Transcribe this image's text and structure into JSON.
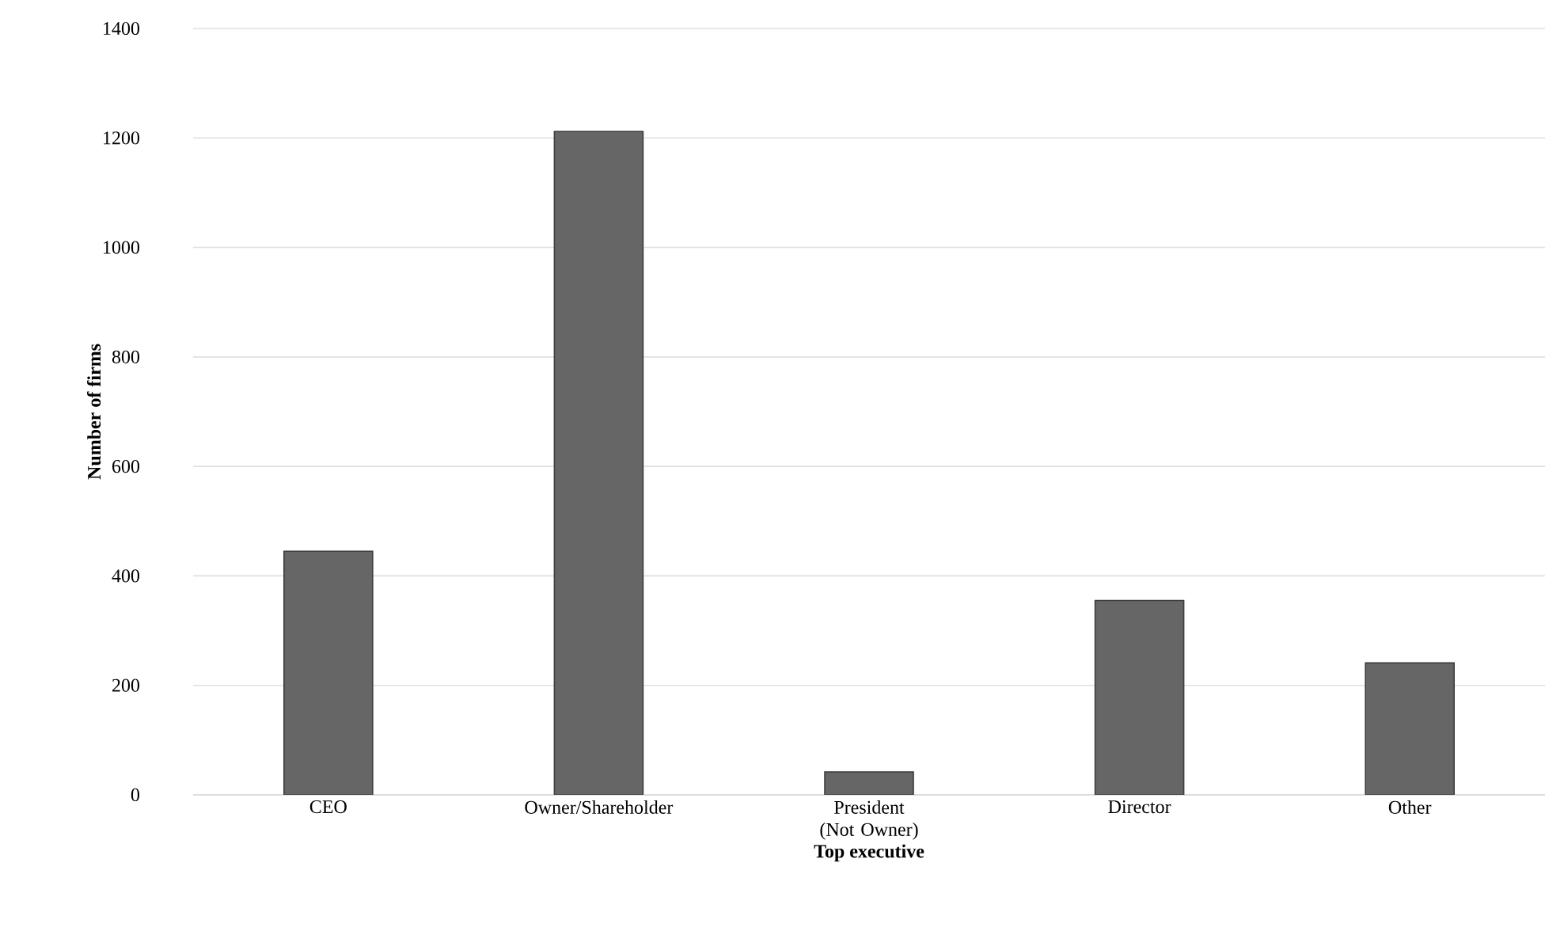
{
  "chart_data": {
    "type": "bar",
    "xlabel": "Top executive",
    "ylabel": "Number of firms",
    "categories": [
      "CEO",
      "Owner/Shareholder",
      "President (Not Owner)",
      "Director",
      "Other"
    ],
    "values": [
      445,
      1212,
      42,
      355,
      241
    ],
    "color": "#666666",
    "ylim": [
      0,
      1400
    ],
    "yticks": [
      0,
      200,
      400,
      600,
      800,
      1000,
      1200,
      1400
    ],
    "grid": "y"
  }
}
